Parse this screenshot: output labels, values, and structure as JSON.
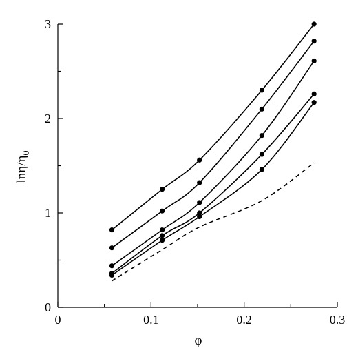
{
  "chart_data": {
    "type": "line",
    "title": "",
    "xlabel": "φ",
    "ylabel_main": "lnη/η",
    "ylabel_sub": "0",
    "xlim": [
      0,
      0.3
    ],
    "ylim": [
      0,
      3
    ],
    "x_ticks": [
      0,
      0.1,
      0.2,
      0.3
    ],
    "x_tick_labels": [
      "0",
      "0.1",
      "0.2",
      "0.3"
    ],
    "y_ticks": [
      0,
      1,
      2,
      3
    ],
    "y_tick_labels": [
      "0",
      "1",
      "2",
      "3"
    ],
    "grid": false,
    "series": [
      {
        "style": "solid",
        "markers": true,
        "x": [
          0.058,
          0.112,
          0.152,
          0.219,
          0.275
        ],
        "y": [
          0.82,
          1.25,
          1.56,
          2.3,
          3.0
        ]
      },
      {
        "style": "solid",
        "markers": true,
        "x": [
          0.058,
          0.112,
          0.152,
          0.219,
          0.275
        ],
        "y": [
          0.63,
          1.02,
          1.32,
          2.1,
          2.82
        ]
      },
      {
        "style": "solid",
        "markers": true,
        "x": [
          0.058,
          0.112,
          0.152,
          0.219,
          0.275
        ],
        "y": [
          0.44,
          0.82,
          1.11,
          1.82,
          2.61
        ]
      },
      {
        "style": "solid",
        "markers": true,
        "x": [
          0.058,
          0.112,
          0.152,
          0.219,
          0.275
        ],
        "y": [
          0.36,
          0.76,
          1.0,
          1.62,
          2.26
        ]
      },
      {
        "style": "solid",
        "markers": true,
        "x": [
          0.058,
          0.112,
          0.152,
          0.219,
          0.275
        ],
        "y": [
          0.34,
          0.71,
          0.96,
          1.46,
          2.17
        ]
      },
      {
        "style": "dashed",
        "markers": false,
        "x": [
          0.058,
          0.112,
          0.152,
          0.219,
          0.275
        ],
        "y": [
          0.28,
          0.61,
          0.85,
          1.13,
          1.53
        ]
      }
    ]
  }
}
